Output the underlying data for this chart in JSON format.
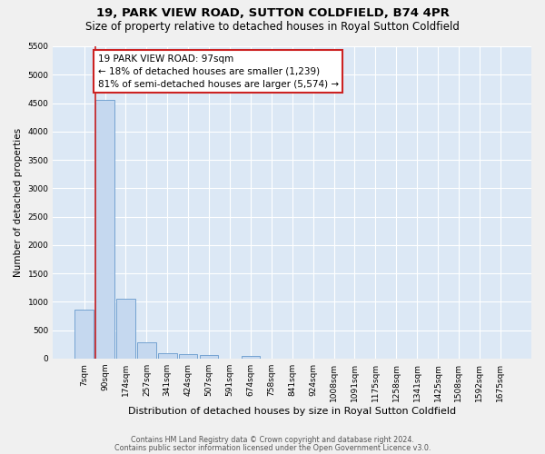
{
  "title": "19, PARK VIEW ROAD, SUTTON COLDFIELD, B74 4PR",
  "subtitle": "Size of property relative to detached houses in Royal Sutton Coldfield",
  "xlabel": "Distribution of detached houses by size in Royal Sutton Coldfield",
  "ylabel": "Number of detached properties",
  "footer_line1": "Contains HM Land Registry data © Crown copyright and database right 2024.",
  "footer_line2": "Contains public sector information licensed under the Open Government Licence v3.0.",
  "categories": [
    "7sqm",
    "90sqm",
    "174sqm",
    "257sqm",
    "341sqm",
    "424sqm",
    "507sqm",
    "591sqm",
    "674sqm",
    "758sqm",
    "841sqm",
    "924sqm",
    "1008sqm",
    "1091sqm",
    "1175sqm",
    "1258sqm",
    "1341sqm",
    "1425sqm",
    "1508sqm",
    "1592sqm",
    "1675sqm"
  ],
  "values": [
    870,
    4550,
    1050,
    290,
    90,
    75,
    60,
    0,
    55,
    0,
    0,
    0,
    0,
    0,
    0,
    0,
    0,
    0,
    0,
    0,
    0
  ],
  "bar_color": "#c5d8ef",
  "bar_edge_color": "#6699cc",
  "property_line_color": "#cc2222",
  "property_bin_index": 1,
  "annotation_line1": "19 PARK VIEW ROAD: 97sqm",
  "annotation_line2": "← 18% of detached houses are smaller (1,239)",
  "annotation_line3": "81% of semi-detached houses are larger (5,574) →",
  "annotation_box_edgecolor": "#cc2222",
  "ylim_max": 5500,
  "yticks": [
    0,
    500,
    1000,
    1500,
    2000,
    2500,
    3000,
    3500,
    4000,
    4500,
    5000,
    5500
  ],
  "plot_bg_color": "#dce8f5",
  "grid_color": "#ffffff",
  "fig_bg_color": "#f0f0f0",
  "title_fontsize": 9.5,
  "subtitle_fontsize": 8.5,
  "ylabel_fontsize": 7.5,
  "xlabel_fontsize": 8,
  "tick_fontsize": 6.5,
  "annotation_fontsize": 7.5,
  "footer_fontsize": 5.8
}
